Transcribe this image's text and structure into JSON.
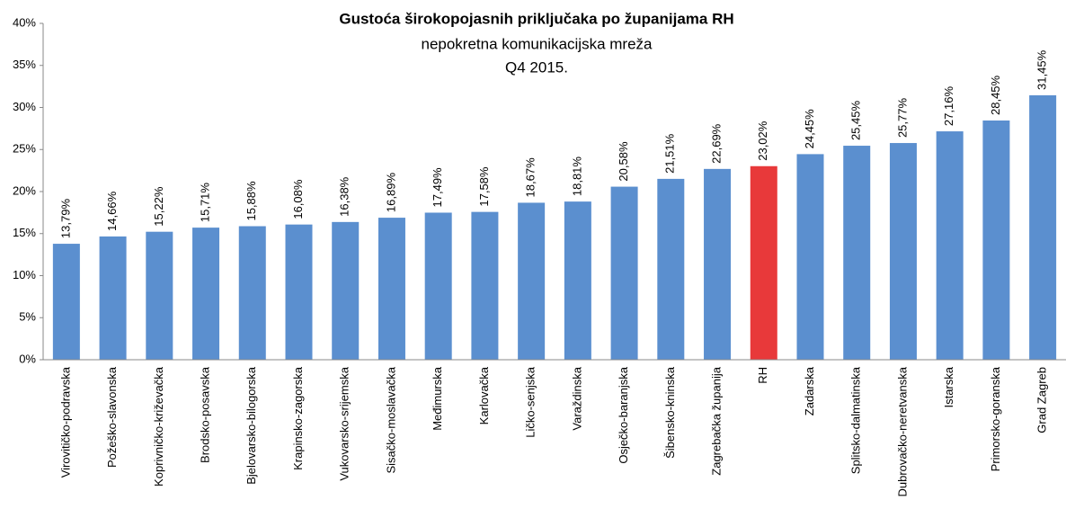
{
  "chart_data": {
    "type": "bar",
    "title": "Gustoća širokopojasnih priključaka po županijama RH",
    "subtitle": "nepokretna komunikacijska mreža",
    "period": "Q4 2015.",
    "categories": [
      "Virovitičko-podravska",
      "Požeško-slavonska",
      "Koprivničko-križevačka",
      "Brodsko-posavska",
      "Bjelovarsko-bilogorska",
      "Krapinsko-zagorska",
      "Vukovarsko-srijemska",
      "Sisačko-moslavačka",
      "Međimurska",
      "Karlovačka",
      "Ličko-senjska",
      "Varaždinska",
      "Osječko-baranjska",
      "Šibensko-kninska",
      "Zagrebačka županija",
      "RH",
      "Zadarska",
      "Splitsko-dalmatinska",
      "Dubrovačko-neretvanska",
      "Istarska",
      "Primorsko-goranska",
      "Grad Zagreb"
    ],
    "values": [
      13.79,
      14.66,
      15.22,
      15.71,
      15.88,
      16.08,
      16.38,
      16.89,
      17.49,
      17.58,
      18.67,
      18.81,
      20.58,
      21.51,
      22.69,
      23.02,
      24.45,
      25.45,
      25.77,
      27.16,
      28.45,
      31.45
    ],
    "value_labels": [
      "13,79%",
      "14,66%",
      "15,22%",
      "15,71%",
      "15,88%",
      "16,08%",
      "16,38%",
      "16,89%",
      "17,49%",
      "17,58%",
      "18,67%",
      "18,81%",
      "20,58%",
      "21,51%",
      "22,69%",
      "23,02%",
      "24,45%",
      "25,45%",
      "25,77%",
      "27,16%",
      "28,45%",
      "31,45%"
    ],
    "colors": [
      "#5b8fcf",
      "#5b8fcf",
      "#5b8fcf",
      "#5b8fcf",
      "#5b8fcf",
      "#5b8fcf",
      "#5b8fcf",
      "#5b8fcf",
      "#5b8fcf",
      "#5b8fcf",
      "#5b8fcf",
      "#5b8fcf",
      "#5b8fcf",
      "#5b8fcf",
      "#5b8fcf",
      "#e8393a",
      "#5b8fcf",
      "#5b8fcf",
      "#5b8fcf",
      "#5b8fcf",
      "#5b8fcf",
      "#5b8fcf"
    ],
    "ylim": [
      0,
      40
    ],
    "yticks": [
      {
        "value": 0,
        "label": "0%"
      },
      {
        "value": 5,
        "label": "5%"
      },
      {
        "value": 10,
        "label": "10%"
      },
      {
        "value": 15,
        "label": "15%"
      },
      {
        "value": 20,
        "label": "20%"
      },
      {
        "value": 25,
        "label": "25%"
      },
      {
        "value": 30,
        "label": "30%"
      },
      {
        "value": 35,
        "label": "35%"
      },
      {
        "value": 40,
        "label": "40%"
      }
    ],
    "grid": false
  }
}
